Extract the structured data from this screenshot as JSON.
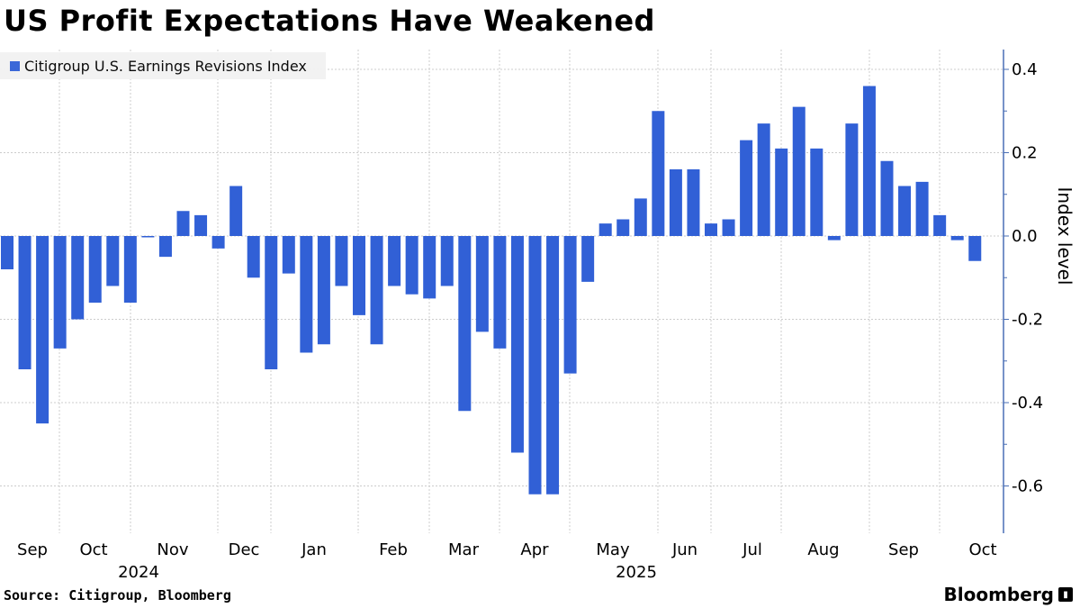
{
  "chart_data": {
    "type": "bar",
    "title": "US Profit Expectations Have Weakened",
    "legend": [
      "Citigroup U.S. Earnings Revisions Index"
    ],
    "legend_placement": "top-left",
    "ylabel": "Index level",
    "xlabel": "",
    "ylim": [
      -0.71,
      0.45
    ],
    "yticks": [
      "0.4",
      "0.2",
      "0.0",
      "-0.2",
      "-0.4",
      "-0.6"
    ],
    "ytick_values": [
      0.4,
      0.2,
      0.0,
      -0.2,
      -0.4,
      -0.6
    ],
    "x_month_labels": [
      "Sep",
      "Oct",
      "Nov",
      "Dec",
      "Jan",
      "Feb",
      "Mar",
      "Apr",
      "May",
      "Jun",
      "Jul",
      "Aug",
      "Sep",
      "Oct"
    ],
    "x_year_labels": [
      "2024",
      "2025"
    ],
    "grid": true,
    "series": [
      {
        "name": "Citigroup U.S. Earnings Revisions Index",
        "color": "#3160d6",
        "values": [
          -0.08,
          -0.32,
          -0.45,
          -0.27,
          -0.2,
          -0.16,
          -0.12,
          -0.16,
          -0.003,
          -0.05,
          0.06,
          0.05,
          -0.03,
          0.12,
          -0.1,
          -0.32,
          -0.09,
          -0.28,
          -0.26,
          -0.12,
          -0.19,
          -0.26,
          -0.12,
          -0.14,
          -0.15,
          -0.12,
          -0.42,
          -0.23,
          -0.27,
          -0.52,
          -0.62,
          -0.62,
          -0.33,
          -0.11,
          0.03,
          0.04,
          0.09,
          0.3,
          0.16,
          0.16,
          0.03,
          0.04,
          0.23,
          0.27,
          0.21,
          0.31,
          0.21,
          -0.01,
          0.27,
          0.36,
          0.18,
          0.12,
          0.13,
          0.05,
          -0.01,
          -0.06
        ]
      }
    ]
  },
  "footer": {
    "source": "Source: Citigroup, Bloomberg",
    "brand": "Bloomberg"
  }
}
